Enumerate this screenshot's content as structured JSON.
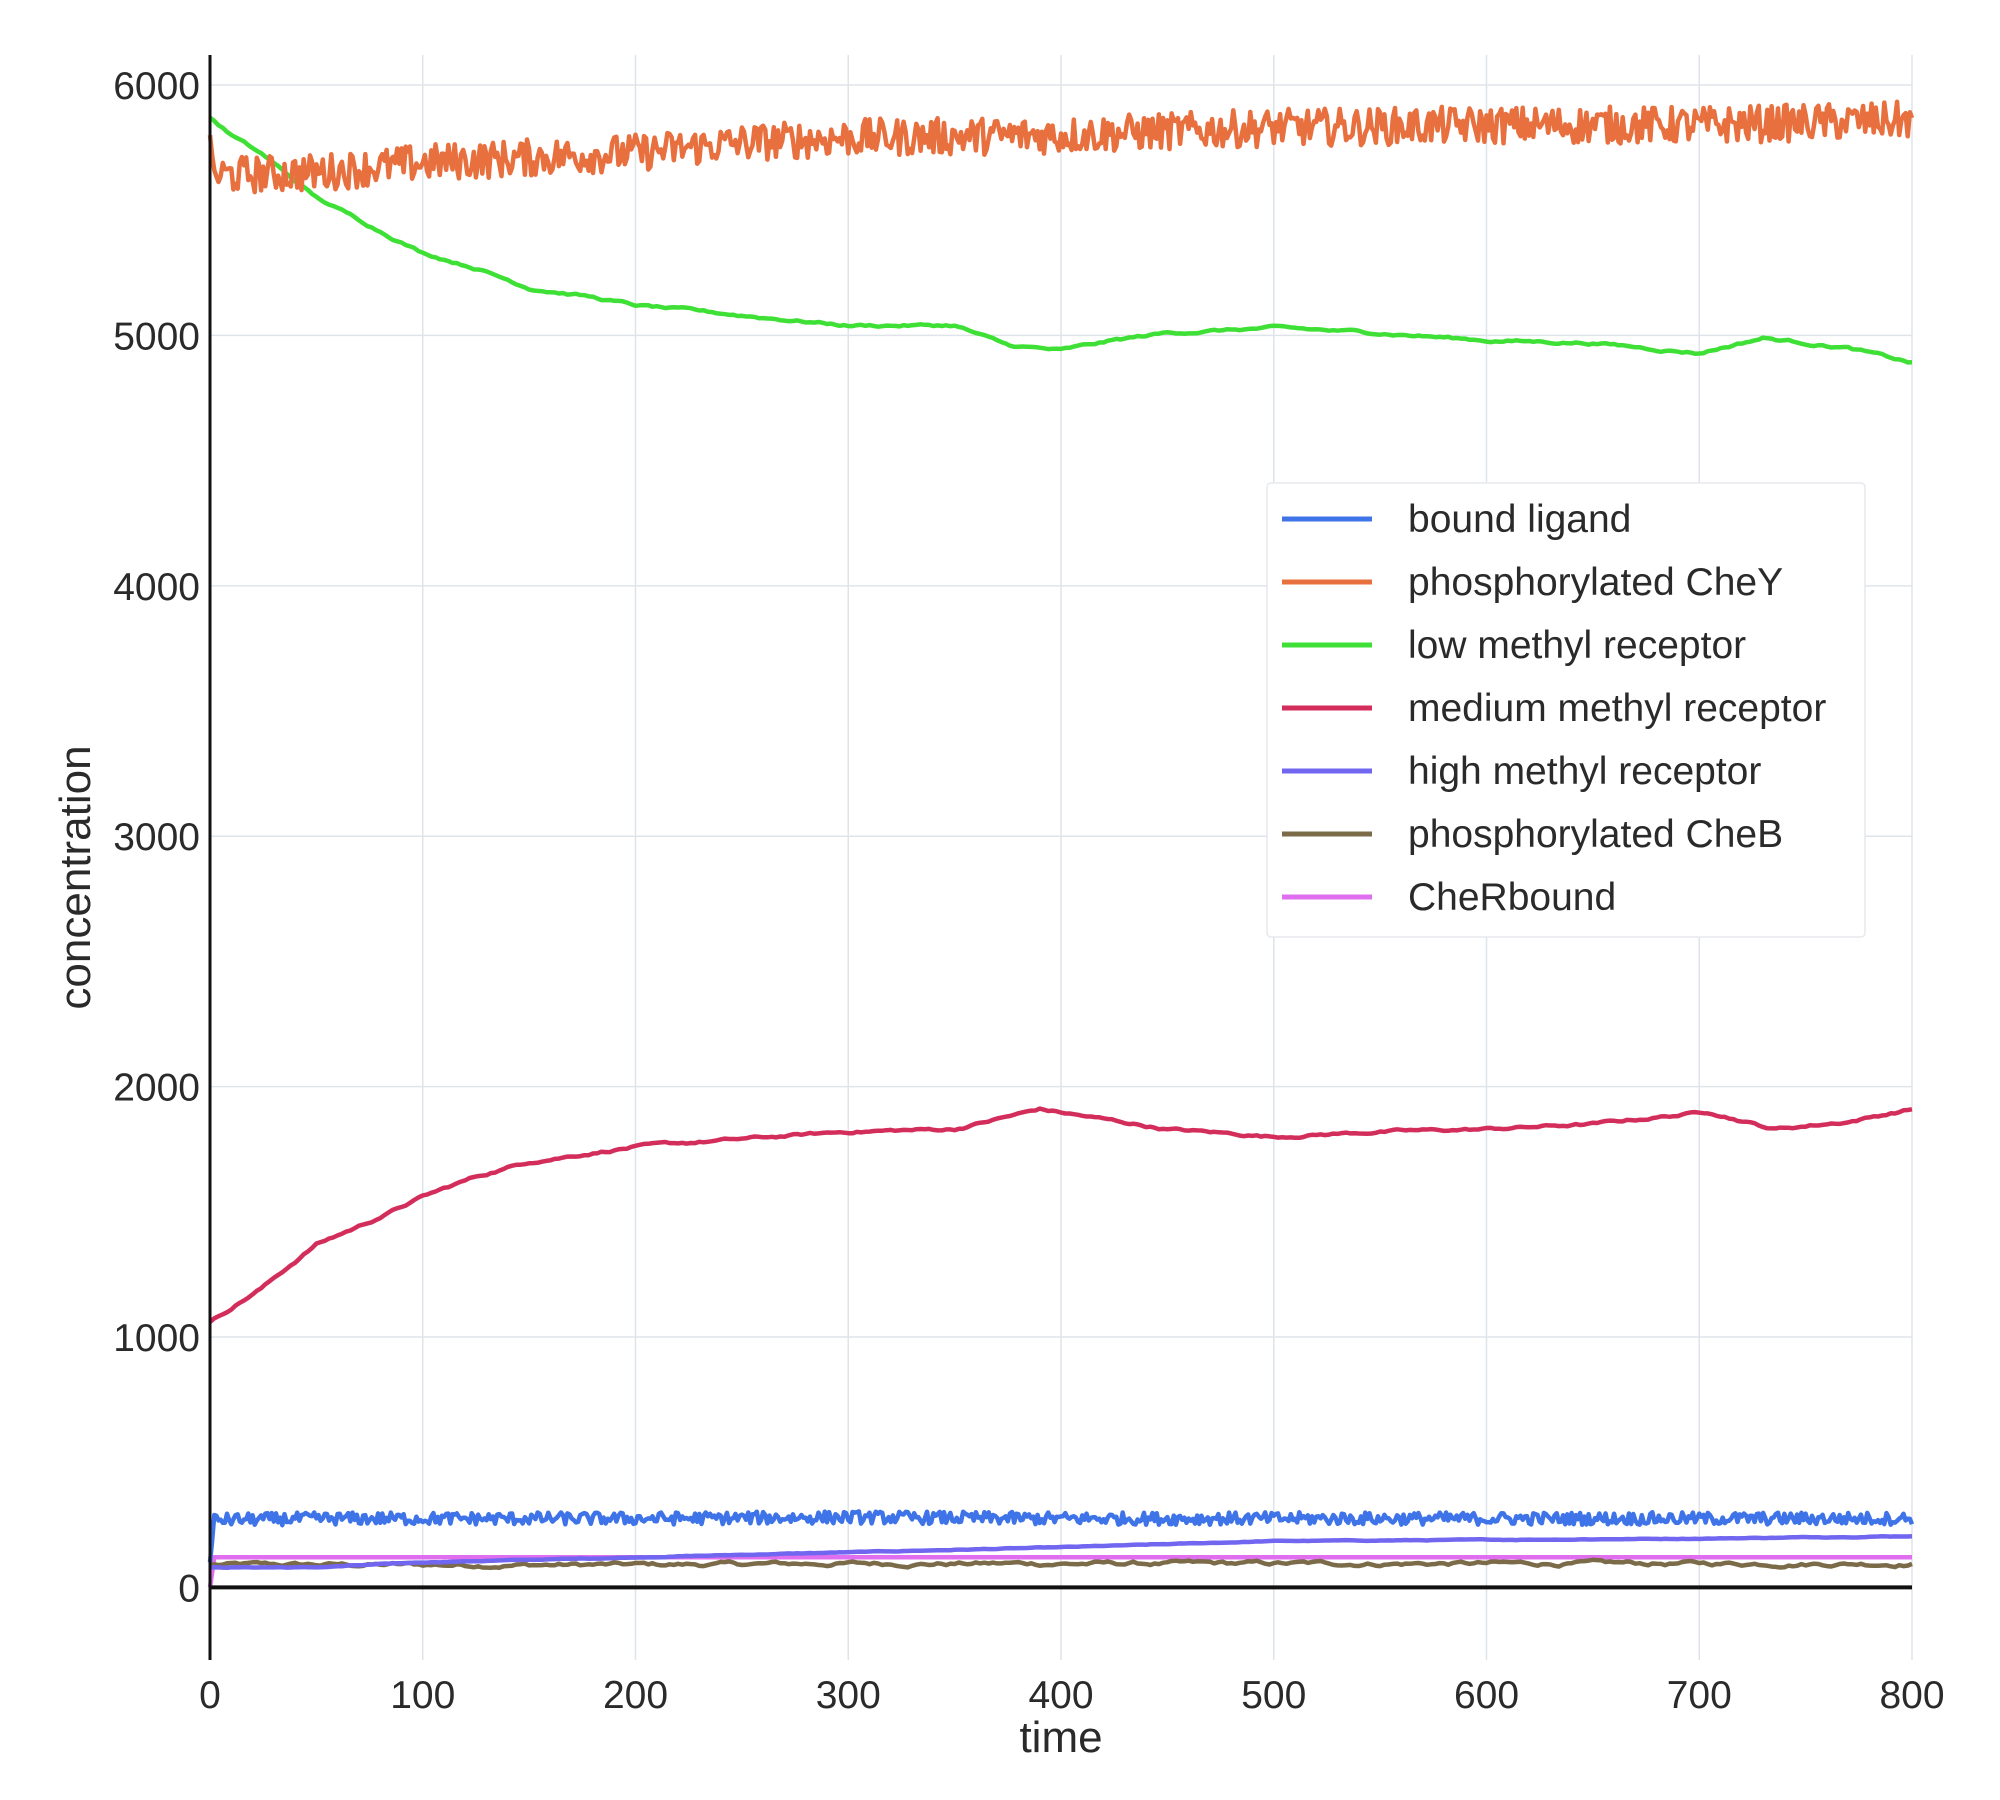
{
  "chart_data": {
    "type": "line",
    "title": "",
    "xlabel": "time",
    "ylabel": "concentration",
    "xlim": [
      0,
      800
    ],
    "ylim": [
      -290,
      6120
    ],
    "xticks": [
      0,
      100,
      200,
      300,
      400,
      500,
      600,
      700,
      800
    ],
    "yticks": [
      0,
      1000,
      2000,
      3000,
      4000,
      5000,
      6000
    ],
    "grid": true,
    "legend_position": "right, upper-middle",
    "zero_line": true,
    "series": [
      {
        "name": "bound ligand",
        "color": "#3f73e8",
        "noise": 25,
        "x": [
          0,
          2,
          50,
          100,
          200,
          300,
          400,
          500,
          600,
          700,
          800
        ],
        "y": [
          100,
          270,
          275,
          275,
          275,
          280,
          275,
          275,
          275,
          275,
          275
        ]
      },
      {
        "name": "phosphorylated CheY",
        "color": "#e8703f",
        "noise": 75,
        "x": [
          0,
          2,
          50,
          100,
          150,
          200,
          250,
          300,
          400,
          500,
          600,
          700,
          800
        ],
        "y": [
          5800,
          5640,
          5650,
          5690,
          5710,
          5730,
          5770,
          5790,
          5800,
          5830,
          5840,
          5840,
          5860
        ]
      },
      {
        "name": "low methyl receptor",
        "color": "#3ee036",
        "noise": 8,
        "x": [
          0,
          10,
          25,
          50,
          75,
          100,
          125,
          150,
          175,
          200,
          250,
          300,
          350,
          375,
          400,
          425,
          450,
          500,
          550,
          600,
          650,
          700,
          730,
          770,
          800
        ],
        "y": [
          5870,
          5800,
          5720,
          5550,
          5440,
          5330,
          5270,
          5190,
          5160,
          5120,
          5080,
          5040,
          5040,
          4960,
          4940,
          4980,
          5010,
          5030,
          5010,
          4980,
          4970,
          4930,
          4990,
          4950,
          4890
        ]
      },
      {
        "name": "medium methyl receptor",
        "color": "#d32e5b",
        "noise": 8,
        "x": [
          0,
          25,
          50,
          75,
          100,
          125,
          150,
          175,
          200,
          250,
          300,
          350,
          390,
          420,
          450,
          500,
          550,
          600,
          650,
          705,
          735,
          770,
          800
        ],
        "y": [
          1060,
          1200,
          1370,
          1460,
          1560,
          1640,
          1700,
          1730,
          1760,
          1790,
          1820,
          1830,
          1910,
          1870,
          1830,
          1800,
          1820,
          1830,
          1850,
          1900,
          1830,
          1860,
          1910
        ]
      },
      {
        "name": "high methyl receptor",
        "color": "#7166f0",
        "noise": 2,
        "x": [
          0,
          50,
          100,
          200,
          300,
          400,
          500,
          600,
          700,
          800
        ],
        "y": [
          80,
          80,
          100,
          120,
          140,
          160,
          185,
          190,
          195,
          205
        ]
      },
      {
        "name": "phosphorylated CheB",
        "color": "#7b6b48",
        "noise": 12,
        "x": [
          0,
          100,
          200,
          300,
          400,
          500,
          600,
          700,
          800
        ],
        "y": [
          90,
          90,
          90,
          95,
          95,
          95,
          95,
          95,
          95
        ]
      },
      {
        "name": "CheRbound",
        "color": "#df6fee",
        "noise": 0,
        "x": [
          0,
          2,
          800
        ],
        "y": [
          0,
          120,
          120
        ]
      }
    ]
  }
}
